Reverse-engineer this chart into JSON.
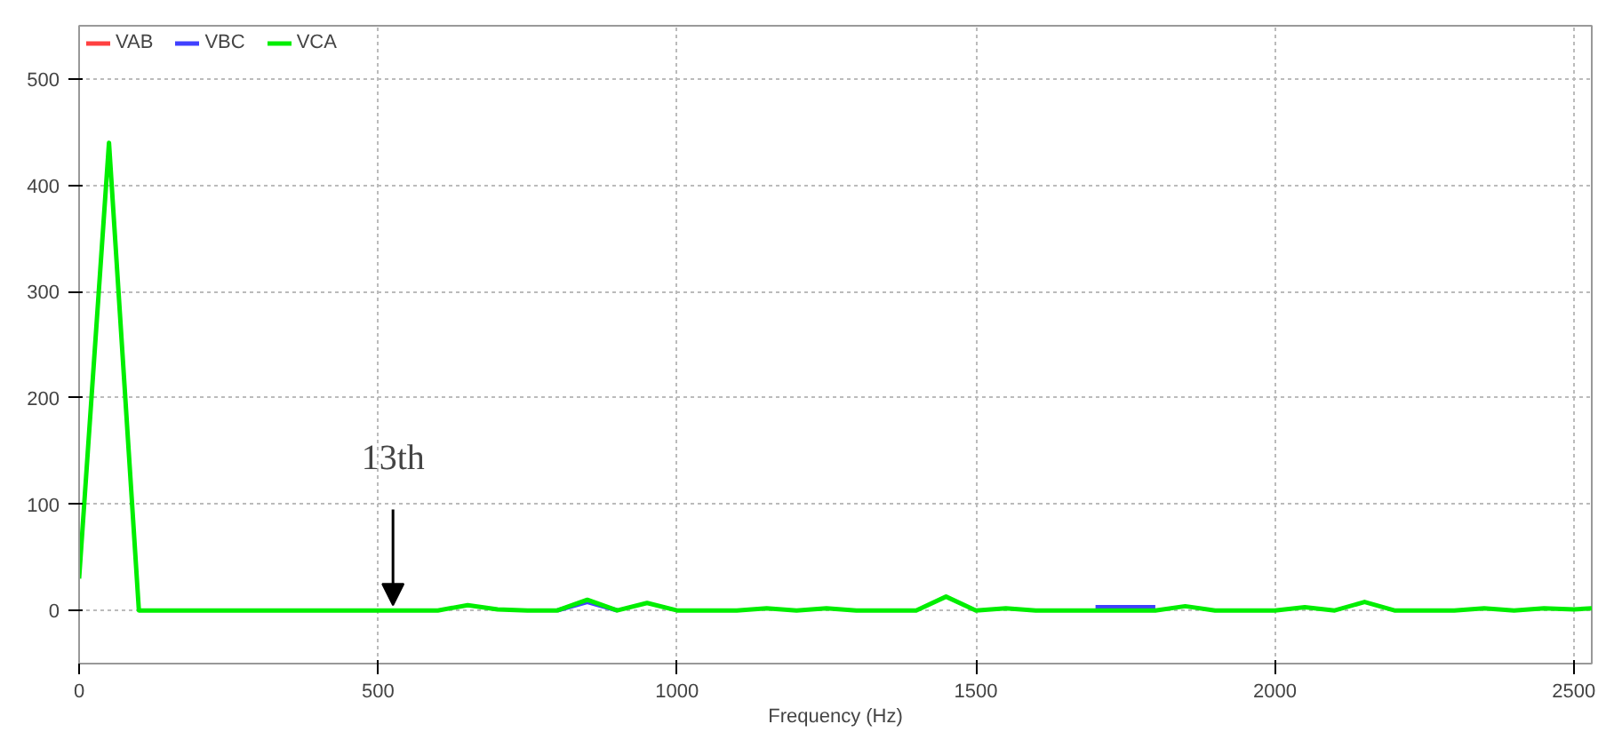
{
  "chart_data": {
    "type": "line",
    "xlabel": "Frequency (Hz)",
    "xlim": [
      0,
      2530
    ],
    "ylim": [
      -50,
      550
    ],
    "xticks": [
      0,
      500,
      1000,
      1500,
      2000,
      2500
    ],
    "yticks": [
      0,
      100,
      200,
      300,
      400,
      500
    ],
    "grid": true,
    "legend": "top left",
    "line_style": "solid",
    "marker": "none",
    "annotations": [
      {
        "text": "13th",
        "x": 525,
        "y": 5
      }
    ],
    "series": [
      {
        "name": "VAB",
        "color": "#ff4040"
      },
      {
        "name": "VBC",
        "color": "#4040ff",
        "x": [
          800,
          850,
          900,
          1300,
          1700,
          1800
        ],
        "values": [
          0,
          8,
          0,
          null,
          3,
          3
        ]
      },
      {
        "name": "VCA",
        "color": "#00ee00",
        "x": [
          0,
          50,
          100,
          150,
          200,
          250,
          300,
          350,
          400,
          450,
          500,
          550,
          600,
          650,
          700,
          750,
          800,
          850,
          900,
          950,
          1000,
          1050,
          1100,
          1150,
          1200,
          1250,
          1300,
          1350,
          1400,
          1450,
          1500,
          1550,
          1600,
          1650,
          1700,
          1750,
          1800,
          1850,
          1900,
          1950,
          2000,
          2050,
          2100,
          2150,
          2200,
          2250,
          2300,
          2350,
          2400,
          2450,
          2500,
          2530
        ],
        "values": [
          30,
          440,
          0,
          0,
          0,
          0,
          0,
          0,
          0,
          0,
          0,
          0,
          0,
          5,
          1,
          0,
          0,
          10,
          0,
          7,
          0,
          0,
          0,
          2,
          0,
          2,
          0,
          0,
          0,
          13,
          0,
          2,
          0,
          0,
          0,
          0,
          0,
          4,
          0,
          0,
          0,
          3,
          0,
          8,
          0,
          0,
          0,
          2,
          0,
          2,
          1,
          2
        ]
      }
    ]
  }
}
